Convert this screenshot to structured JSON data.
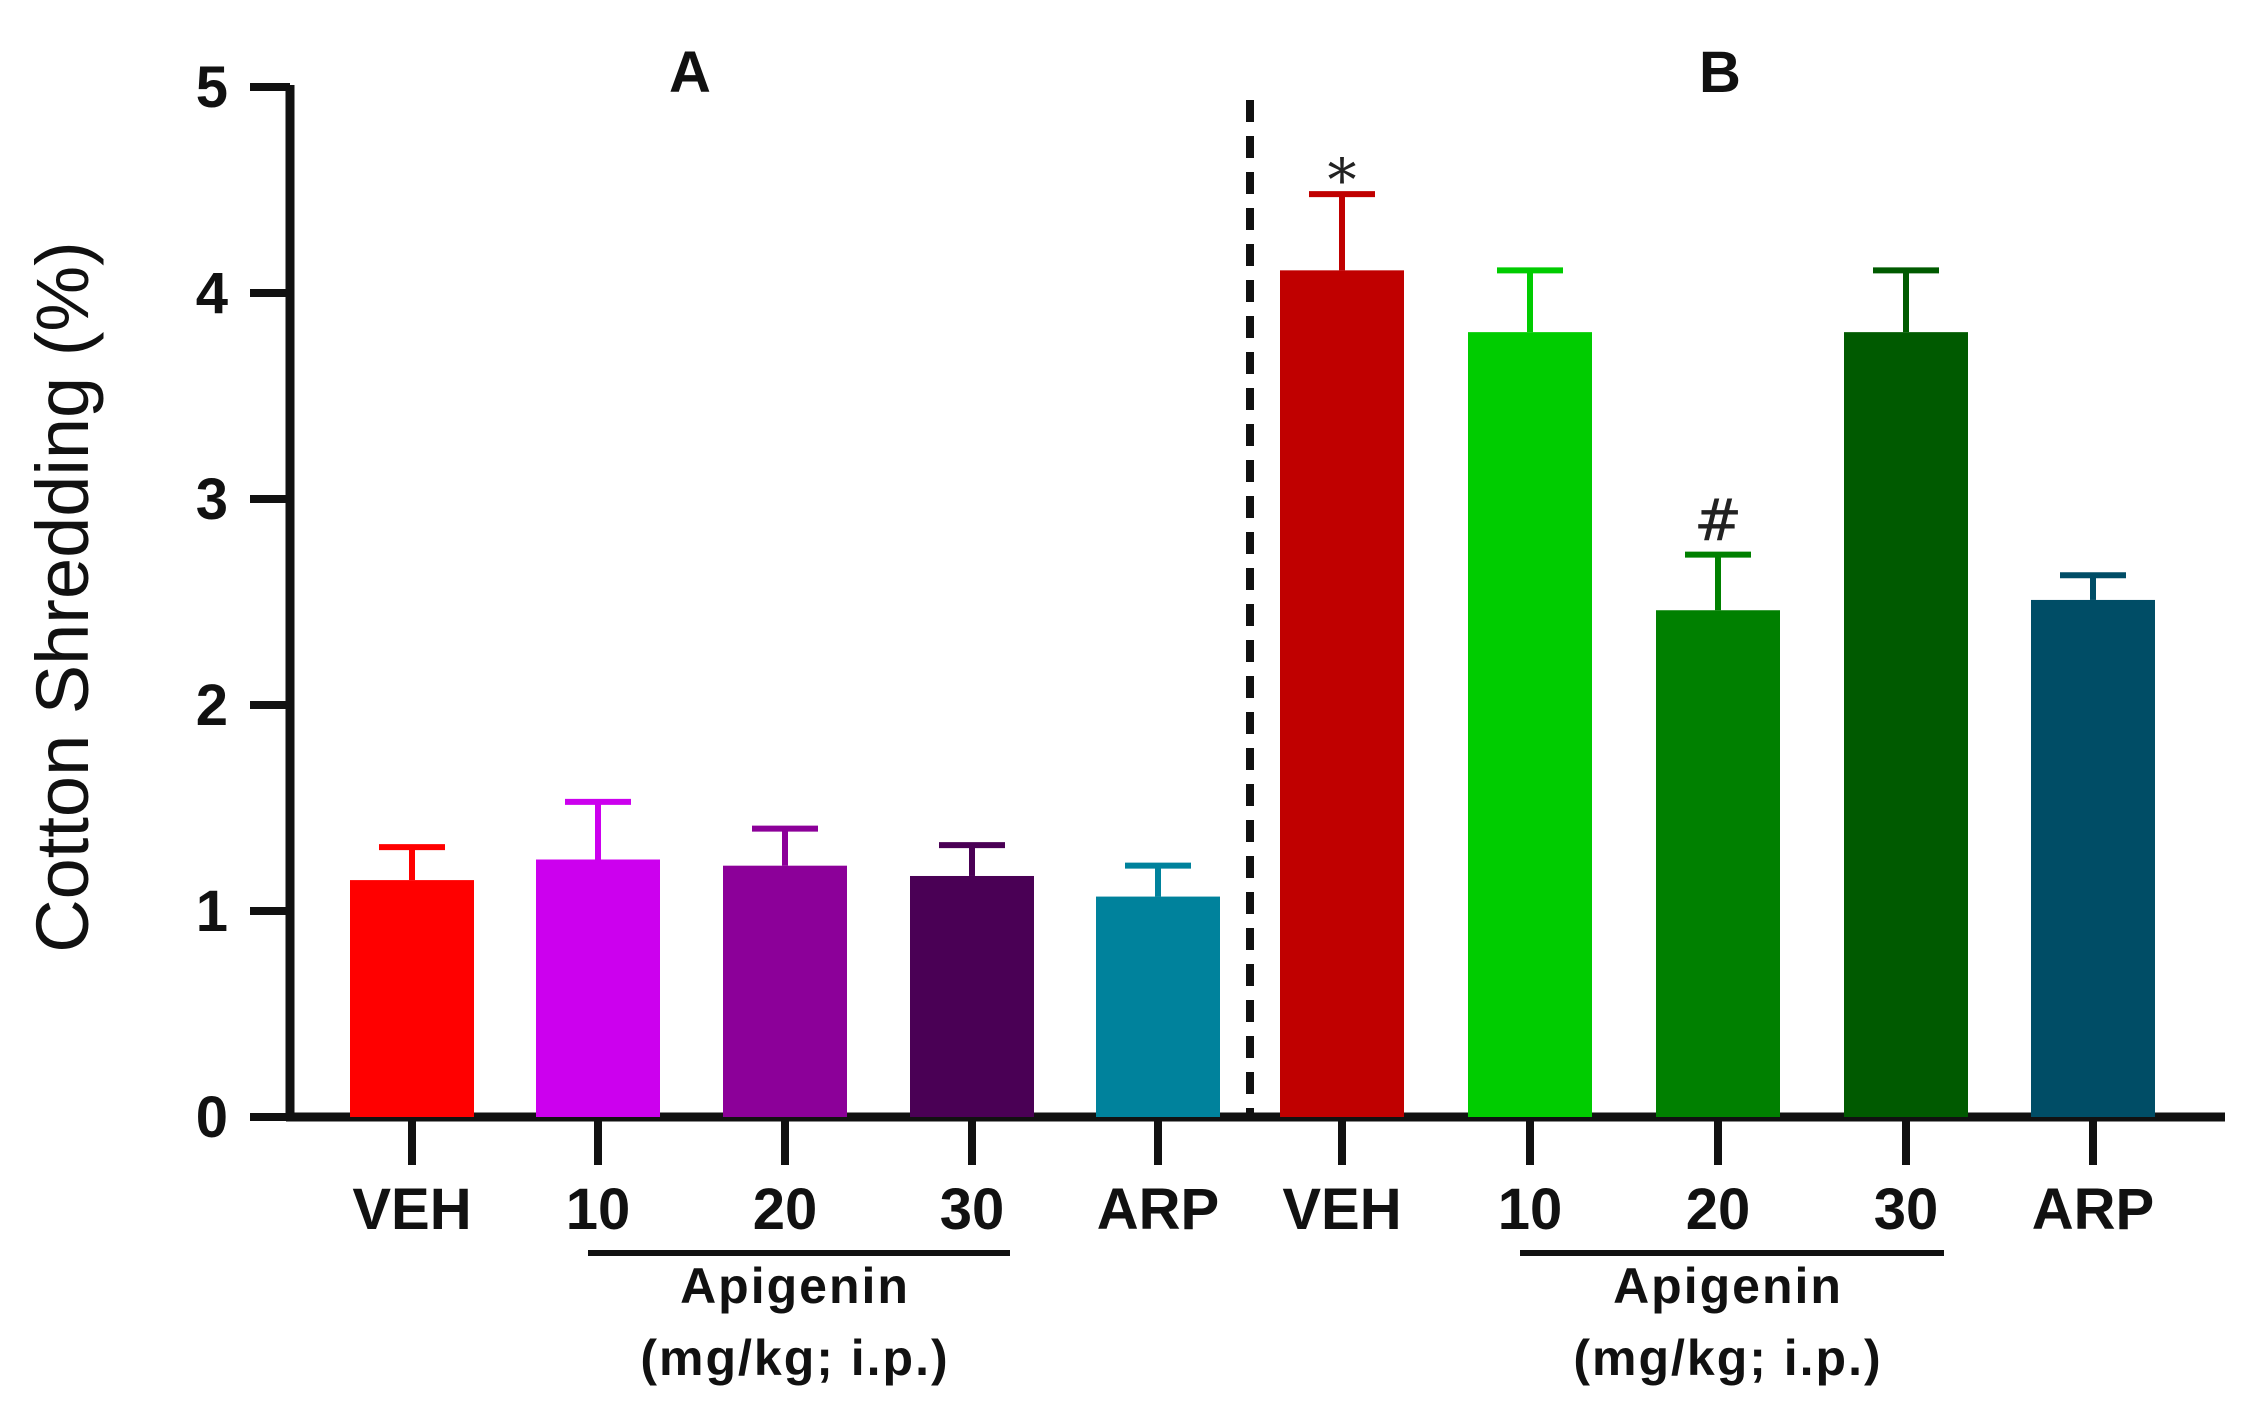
{
  "chart_data": {
    "type": "bar",
    "ylabel": "Cotton Shredding (%)",
    "ylim": [
      0,
      5
    ],
    "yticks": [
      "0",
      "1",
      "2",
      "3",
      "4",
      "5"
    ],
    "panels": [
      {
        "label": "A",
        "categories": [
          "VEH",
          "10",
          "20",
          "30",
          "ARP"
        ],
        "values": [
          1.15,
          1.25,
          1.22,
          1.17,
          1.07
        ],
        "errors": [
          0.16,
          0.28,
          0.18,
          0.15,
          0.15
        ],
        "colors": [
          "#ff0000",
          "#cc00ee",
          "#8c0099",
          "#4a0055",
          "#00829c"
        ],
        "significance": [
          "",
          "",
          "",
          "",
          ""
        ],
        "group_label_line1": "Apigenin",
        "group_label_line2": "(mg/kg; i.p.)"
      },
      {
        "label": "B",
        "categories": [
          "VEH",
          "10",
          "20",
          "30",
          "ARP"
        ],
        "values": [
          4.11,
          3.81,
          2.46,
          3.81,
          2.51
        ],
        "errors": [
          0.37,
          0.3,
          0.27,
          0.3,
          0.12
        ],
        "colors": [
          "#c00000",
          "#00cc00",
          "#008000",
          "#005a00",
          "#004d66"
        ],
        "significance": [
          "*",
          "",
          "#",
          "",
          ""
        ],
        "group_label_line1": "Apigenin",
        "group_label_line2": "(mg/kg; i.p.)"
      }
    ]
  }
}
